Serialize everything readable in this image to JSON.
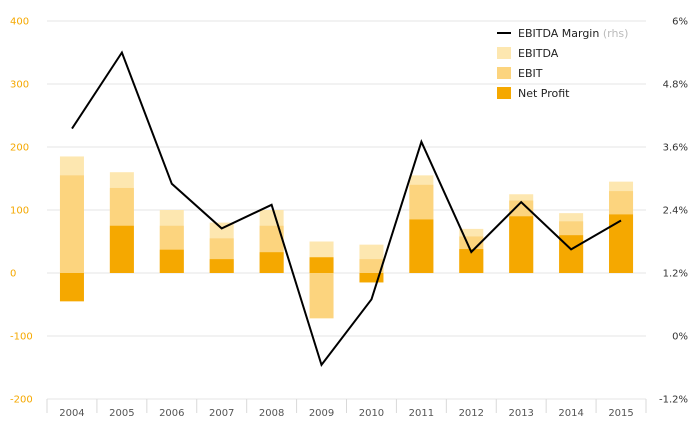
{
  "chart_data": {
    "type": "bar",
    "categories": [
      "2004",
      "2005",
      "2006",
      "2007",
      "2008",
      "2009",
      "2010",
      "2011",
      "2012",
      "2013",
      "2014",
      "2015"
    ],
    "series": [
      {
        "name": "EBITDA",
        "kind": "bar",
        "axis": "left",
        "color": "#fde7b0",
        "values": [
          185,
          160,
          100,
          80,
          100,
          50,
          45,
          155,
          70,
          125,
          95,
          145
        ]
      },
      {
        "name": "EBIT",
        "kind": "bar",
        "axis": "left",
        "color": "#fcd47e",
        "values": [
          155,
          135,
          75,
          55,
          75,
          -72,
          22,
          140,
          58,
          115,
          82,
          130
        ]
      },
      {
        "name": "Net Profit",
        "kind": "bar",
        "axis": "left",
        "color": "#f5a800",
        "values": [
          -45,
          75,
          37,
          22,
          33,
          25,
          -15,
          85,
          38,
          90,
          60,
          93
        ]
      },
      {
        "name": "EBITDA Margin",
        "name_suffix": "(rhs)",
        "kind": "line",
        "axis": "right",
        "color": "#000000",
        "values": [
          3.95,
          5.4,
          2.9,
          2.05,
          2.5,
          -0.55,
          0.7,
          3.7,
          1.6,
          2.55,
          1.65,
          2.2
        ]
      }
    ],
    "y_left": {
      "ticks": [
        "400",
        "300",
        "200",
        "100",
        "0",
        "-100",
        "-200"
      ],
      "range": [
        -200,
        400
      ]
    },
    "y_right": {
      "ticks": [
        "6%",
        "4.8%",
        "3.6%",
        "2.4%",
        "1.2%",
        "0%",
        "-1.2%"
      ],
      "range": [
        -1.2,
        6
      ]
    },
    "grid": true,
    "legend": "top-right",
    "colors": {
      "left_axis": "#f5a800",
      "grid": "#e6e6e6"
    }
  }
}
